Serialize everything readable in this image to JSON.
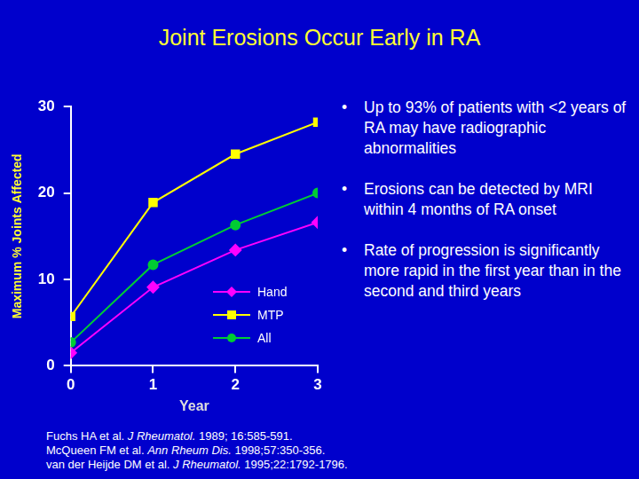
{
  "chart_data": {
    "type": "line",
    "title": "Joint Erosions Occur Early in RA",
    "x_label": "Year",
    "y_label": "Maximum % Joints Affected",
    "x": [
      0,
      1,
      2,
      3
    ],
    "xlim": [
      0,
      3
    ],
    "xticks": [
      0,
      1,
      2,
      3
    ],
    "ylim": [
      0,
      30
    ],
    "yticks": [
      0,
      10,
      20,
      30
    ],
    "grid": false,
    "legend": "lower right",
    "series": [
      {
        "name": "Hand",
        "color": "#ff00ff",
        "marker": "diamond",
        "line_style": "solid",
        "values": [
          1.5,
          9.1,
          13.4,
          16.6
        ]
      },
      {
        "name": "MTP",
        "color": "#ffff00",
        "marker": "square",
        "line_style": "solid",
        "values": [
          5.7,
          18.9,
          24.5,
          28.2
        ]
      },
      {
        "name": "All",
        "color": "#00cc33",
        "marker": "circle",
        "line_style": "solid",
        "values": [
          2.7,
          11.7,
          16.3,
          20.0
        ]
      }
    ],
    "annotations": [
      "Up to 93% of patients with <2 years of RA may have radiographic abnormalities",
      "Erosions can be detected by MRI within 4 months of RA onset",
      "Rate of progression is significantly more rapid in the first year than in the second and third years"
    ],
    "references": [
      {
        "authors": "Fuchs HA et al.",
        "journal": "J Rheumatol.",
        "details": "1989; 16:585-591."
      },
      {
        "authors": "McQueen FM et al.",
        "journal": "Ann Rheum Dis.",
        "details": "1998;57:350-356."
      },
      {
        "authors": "van der Heijde DM et al.",
        "journal": "J Rheumatol.",
        "details": "1995;22:1792-1796."
      }
    ]
  }
}
